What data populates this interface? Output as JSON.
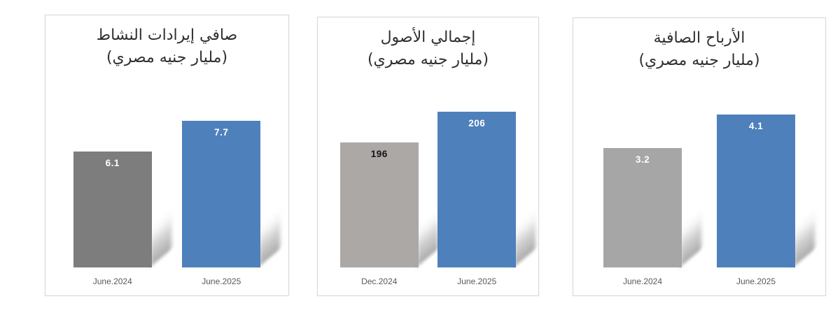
{
  "page": {
    "background": "#ffffff",
    "accent_blue": "#4e80bc"
  },
  "chart_data": [
    {
      "type": "bar",
      "title_line1": "صافي إيرادات النشاط",
      "title_line2": "(مليار جنيه مصري)",
      "title": "صافي إيرادات النشاط (مليار جنيه مصري)",
      "categories": [
        "June.2024",
        "June.2025"
      ],
      "values": [
        6.1,
        7.7
      ],
      "value_labels": [
        "6.1",
        "7.7"
      ],
      "bar_colors": [
        "#7d7d7d",
        "#4e80bc"
      ],
      "value_label_colors": [
        "#ffffff",
        "#ffffff"
      ],
      "ylim": [
        0,
        8.8
      ],
      "xlabel": "",
      "ylabel": "",
      "grid": false,
      "legend": "none"
    },
    {
      "type": "bar",
      "title_line1": "إجمالي الأصول",
      "title_line2": "(مليار جنيه مصري)",
      "title": "إجمالي الأصول (مليار جنيه مصري)",
      "categories": [
        "Dec.2024",
        "June.2025"
      ],
      "values": [
        196,
        206
      ],
      "value_labels": [
        "196",
        "206"
      ],
      "bar_colors": [
        "#aba8a6",
        "#4e80bc"
      ],
      "value_label_colors": [
        "#14141c",
        "#ffffff"
      ],
      "ylim": [
        155,
        210
      ],
      "xlabel": "",
      "ylabel": "",
      "grid": false,
      "legend": "none"
    },
    {
      "type": "bar",
      "title_line1": "الأرباح الصافية",
      "title_line2": "(مليار جنيه مصري)",
      "title": "الأرباح الصافية (مليار جنيه مصري)",
      "categories": [
        "June.2024",
        "June.2025"
      ],
      "values": [
        3.2,
        4.1
      ],
      "value_labels": [
        "3.2",
        "4.1"
      ],
      "bar_colors": [
        "#a6a6a6",
        "#4e80bc"
      ],
      "value_label_colors": [
        "#ffffff",
        "#ffffff"
      ],
      "ylim": [
        0,
        4.5
      ],
      "xlabel": "",
      "ylabel": "",
      "grid": false,
      "legend": "none"
    }
  ]
}
